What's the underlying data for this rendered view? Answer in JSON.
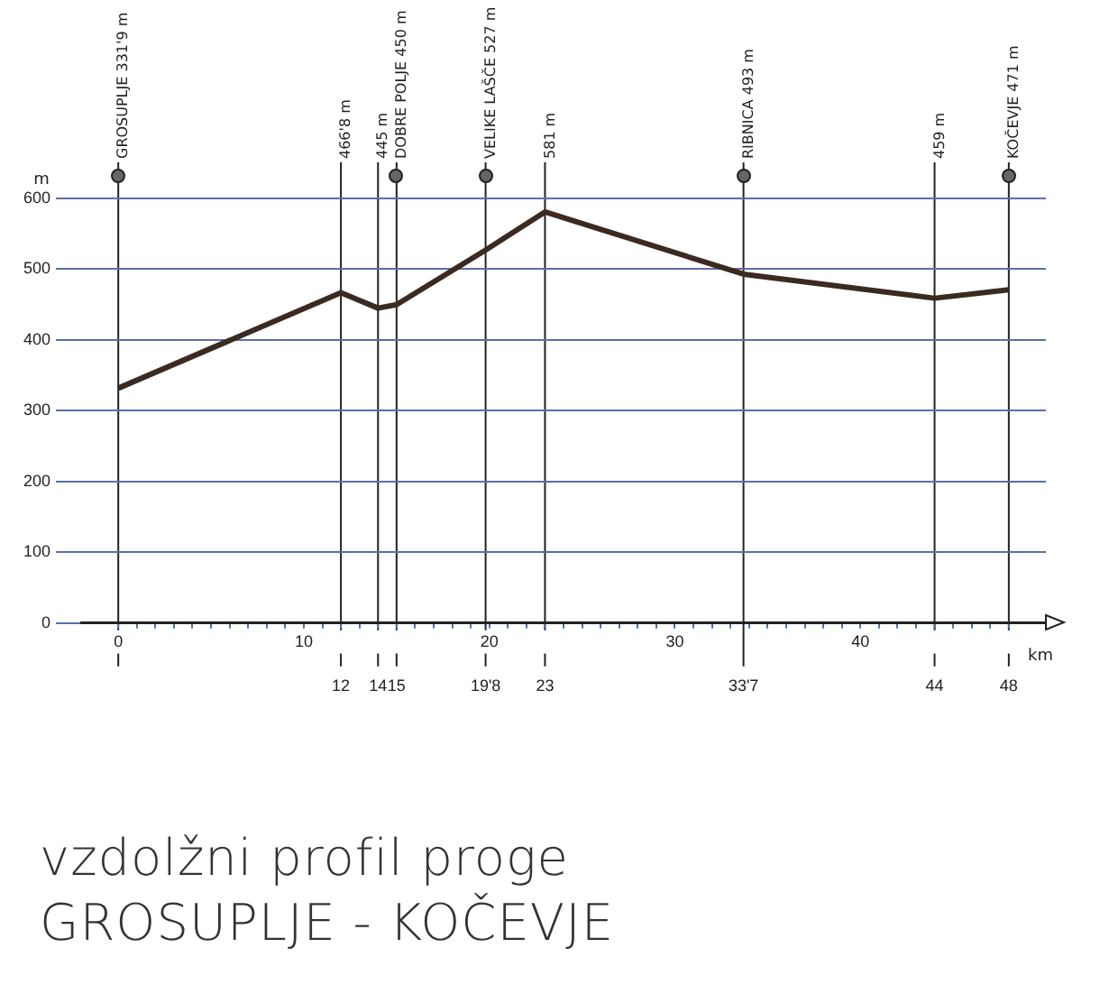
{
  "chart_data": {
    "type": "line",
    "title": "vzdolžni profil proge",
    "subtitle": "GROSUPLJE - KOČEVJE",
    "xlabel": "km",
    "ylabel": "m",
    "x": [
      0,
      12,
      14,
      15,
      19.8,
      23,
      33.7,
      44,
      48
    ],
    "series": [
      {
        "color": "#3a2a20",
        "values": [
          331.9,
          466.8,
          445,
          450,
          527,
          581,
          493,
          459,
          471
        ]
      }
    ],
    "xlim": [
      -2,
      50
    ],
    "ylim": [
      0,
      600
    ],
    "x2lim": [
      -2,
      50
    ],
    "x2ticks": [
      12,
      14,
      15,
      {
        "value": 19.8,
        "label": "19'8"
      },
      23,
      {
        "value": 33.7,
        "label": "33'7"
      },
      44,
      48
    ],
    "xticks": [
      0,
      {
        "value": 1,
        "label": null
      },
      {
        "value": 2,
        "label": null
      },
      {
        "value": 3,
        "label": null
      },
      {
        "value": 4,
        "label": null
      },
      {
        "value": 5,
        "label": null
      },
      {
        "value": 6,
        "label": null
      },
      {
        "value": 7,
        "label": null
      },
      {
        "value": 8,
        "label": null
      },
      {
        "value": 9,
        "label": null
      },
      10,
      {
        "value": 11,
        "label": null
      },
      {
        "value": 12,
        "label": null
      },
      {
        "value": 13,
        "label": null
      },
      {
        "value": 14,
        "label": null
      },
      {
        "value": 15,
        "label": null
      },
      {
        "value": 16,
        "label": null
      },
      {
        "value": 17,
        "label": null
      },
      {
        "value": 18,
        "label": null
      },
      {
        "value": 19,
        "label": null
      },
      20,
      {
        "value": 21,
        "label": null
      },
      {
        "value": 22,
        "label": null
      },
      {
        "value": 23,
        "label": null
      },
      {
        "value": 24,
        "label": null
      },
      {
        "value": 25,
        "label": null
      },
      {
        "value": 26,
        "label": null
      },
      {
        "value": 27,
        "label": null
      },
      {
        "value": 28,
        "label": null
      },
      {
        "value": 29,
        "label": null
      },
      30,
      {
        "value": 31,
        "label": null
      },
      {
        "value": 32,
        "label": null
      },
      {
        "value": 33,
        "label": null
      },
      {
        "value": 34,
        "label": null
      },
      {
        "value": 35,
        "label": null
      },
      {
        "value": 36,
        "label": null
      },
      {
        "value": 37,
        "label": null
      },
      {
        "value": 38,
        "label": null
      },
      {
        "value": 39,
        "label": null
      },
      40,
      {
        "value": 41,
        "label": null
      },
      {
        "value": 42,
        "label": null
      },
      {
        "value": 43,
        "label": null
      },
      {
        "value": 44,
        "label": null
      },
      {
        "value": 45,
        "label": null
      },
      {
        "value": 46,
        "label": null
      },
      {
        "value": 47,
        "label": null
      },
      {
        "value": 48,
        "label": null
      }
    ],
    "yticks": [
      0,
      100,
      200,
      300,
      400,
      500,
      600
    ],
    "grid": "y",
    "legend": false,
    "marker": "none",
    "line_style": "solid",
    "ref_lines": [
      {
        "axis": "x",
        "value": 0,
        "label": "GROSUPLJE 331'9 m"
      },
      {
        "axis": "x",
        "value": 12,
        "label": "466'8 m"
      },
      {
        "axis": "x",
        "value": 14,
        "label": "445 m"
      },
      {
        "axis": "x",
        "value": 15,
        "label": "DOBRE POLJE 450 m"
      },
      {
        "axis": "x",
        "value": 19.8,
        "label": "VELIKE LAŠČE 527 m"
      },
      {
        "axis": "x",
        "value": 23,
        "label": "581 m"
      },
      {
        "axis": "x",
        "value": 33.7,
        "label": "RIBNICA 493 m"
      },
      {
        "axis": "x",
        "value": 44,
        "label": "459 m"
      },
      {
        "axis": "x",
        "value": 48,
        "label": "KOČEVJE 471 m"
      }
    ]
  }
}
